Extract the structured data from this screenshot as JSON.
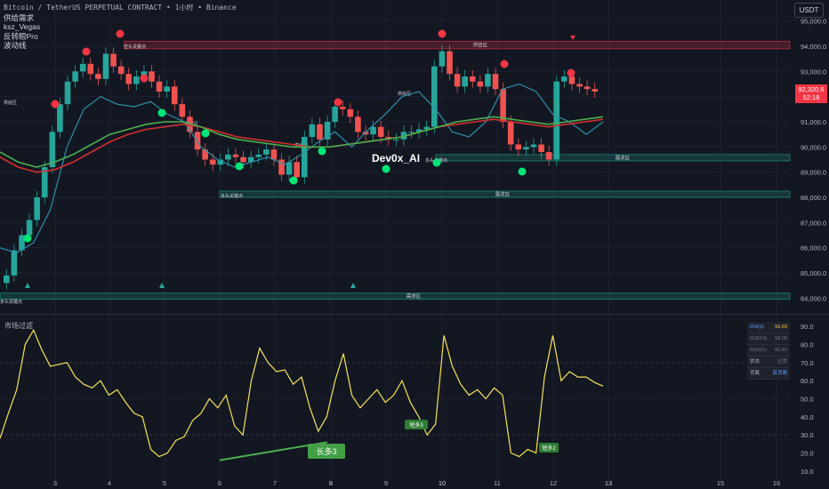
{
  "header": {
    "symbol_line": "Bitcoin / TetherUS PERPETUAL CONTRACT • 1小时 • Binance",
    "indicators": [
      "供给需求",
      "ksz_Vegas",
      "反转眼Pro",
      "波动线"
    ],
    "currency_button": "USDT"
  },
  "watermark": "Dev0x_AI",
  "price_axis": {
    "ticks": [
      "95,000.0",
      "94,000.0",
      "93,000.0",
      "92,000.0",
      "91,000.0",
      "90,000.0",
      "89,000.0",
      "88,000.0",
      "87,000.0",
      "86,000.0",
      "85,000.0",
      "84,000.0"
    ],
    "current_price": "92,320.6",
    "countdown": "52:18"
  },
  "rsi_axis": {
    "ticks": [
      "90.0",
      "80.0",
      "70.0",
      "60.0",
      "50.0",
      "40.0",
      "30.0",
      "20.0",
      "10.0"
    ]
  },
  "time_axis": {
    "ticks": [
      "3",
      "4",
      "5",
      "6",
      "7",
      "8",
      "9",
      "10",
      "11",
      "12",
      "13",
      "15",
      "16"
    ]
  },
  "zones": [
    {
      "label": "供给区",
      "color": "#f23645"
    },
    {
      "label": "需求区",
      "color": "#22ab94"
    },
    {
      "label": "需求区",
      "color": "#22ab94"
    },
    {
      "label": "需求区",
      "color": "#22ab94"
    }
  ],
  "zone_tags": {
    "left_supply": "供给区",
    "mid_supply": "供给区",
    "right_supply": "供给区",
    "short_key": "空头关键点",
    "long_key_left": "多头关键点",
    "long_key_mid": "多头关键点",
    "long_key_right": "多头关键点",
    "demand_small": "需求区"
  },
  "lower_pane": {
    "title": "市场过滤",
    "long_label": "长多3",
    "short_label_a": "短多3",
    "short_label_b": "短多2",
    "table": [
      {
        "k": "RSI(9)",
        "v": "56.69",
        "kc": "#5b9cf6",
        "vc": "#f7c543"
      },
      {
        "k": "RSI(14)",
        "v": "58.09",
        "kc": "#787b86",
        "vc": "#787b86"
      },
      {
        "k": "RSI(21)",
        "v": "60.43",
        "kc": "#787b86",
        "vc": "#787b86"
      },
      {
        "k": "状态",
        "v": "正常",
        "kc": "#b2b5be",
        "vc": "#787b86"
      },
      {
        "k": "背离",
        "v": "底背离",
        "kc": "#b2b5be",
        "vc": "#5b9cf6"
      }
    ]
  },
  "colors": {
    "up": "#26a69a",
    "down": "#ef5350",
    "bg": "#131722",
    "ema_green": "#4caf50",
    "ema_red": "#d32f2f",
    "band": "#2e8fa8",
    "rsi": "#f7e35a"
  },
  "chart_data": {
    "type": "candlestick",
    "price_range": [
      83800,
      95200
    ],
    "rsi_range": [
      5,
      95
    ],
    "price_close": [
      84900,
      85900,
      86500,
      87100,
      88000,
      89200,
      90600,
      91700,
      92600,
      93000,
      93300,
      92900,
      92700,
      93700,
      93200,
      92900,
      92500,
      92800,
      93000,
      92600,
      92200,
      92400,
      91700,
      91200,
      90600,
      89900,
      89500,
      89300,
      89500,
      89700,
      89600,
      89400,
      89600,
      89700,
      89900,
      89500,
      88900,
      89400,
      88800,
      90400,
      90900,
      90300,
      91000,
      91600,
      91500,
      91200,
      90600,
      90500,
      90800,
      90400,
      90300,
      90300,
      90600,
      90600,
      90700,
      90800,
      93200,
      93800,
      92900,
      92400,
      92800,
      92600,
      92400,
      92900,
      92300,
      91000,
      90100,
      89900,
      90000,
      90100,
      89800,
      89500,
      92600,
      92800,
      92500,
      92400,
      92300,
      92200
    ],
    "rsi": [
      28,
      42,
      55,
      80,
      88,
      77,
      68,
      69,
      70,
      62,
      58,
      56,
      60,
      52,
      55,
      48,
      42,
      40,
      22,
      18,
      20,
      27,
      29,
      38,
      42,
      50,
      45,
      52,
      35,
      30,
      60,
      78,
      70,
      65,
      66,
      58,
      62,
      45,
      32,
      40,
      60,
      75,
      52,
      45,
      50,
      55,
      48,
      52,
      60,
      48,
      40,
      30,
      36,
      85,
      68,
      58,
      52,
      55,
      50,
      56,
      52,
      20,
      18,
      22,
      20,
      62,
      85,
      60,
      65,
      62,
      62,
      59,
      57
    ],
    "ema_fast": [
      89800,
      89400,
      89200,
      89400,
      89700,
      90100,
      90500,
      90700,
      90900,
      91000,
      91000,
      90800,
      90500,
      90300,
      90200,
      90100,
      90000,
      90000,
      90000,
      90100,
      90200,
      90300,
      90400,
      90600,
      90800,
      91000,
      91100,
      91200,
      91100,
      91000,
      90900,
      91000,
      91100,
      91200
    ],
    "ema_slow": [
      89600,
      89200,
      89000,
      89100,
      89400,
      89800,
      90200,
      90500,
      90700,
      90800,
      90900,
      90800,
      90600,
      90400,
      90300,
      90200,
      90100,
      90000,
      90000,
      90100,
      90200,
      90300,
      90400,
      90600,
      90800,
      90900,
      91000,
      91100,
      91000,
      90900,
      90800,
      90900,
      91000,
      91100
    ],
    "band": [
      86000,
      85800,
      86200,
      87500,
      90000,
      91500,
      92000,
      91700,
      91600,
      91800,
      91300,
      91000,
      90000,
      89500,
      89200,
      89400,
      89600,
      89300,
      89700,
      90200,
      90600,
      90000,
      90700,
      91300,
      92000,
      92200,
      91500,
      90600,
      90400,
      91000,
      92300,
      92500,
      92200,
      91300,
      91000,
      90500,
      91000
    ]
  }
}
